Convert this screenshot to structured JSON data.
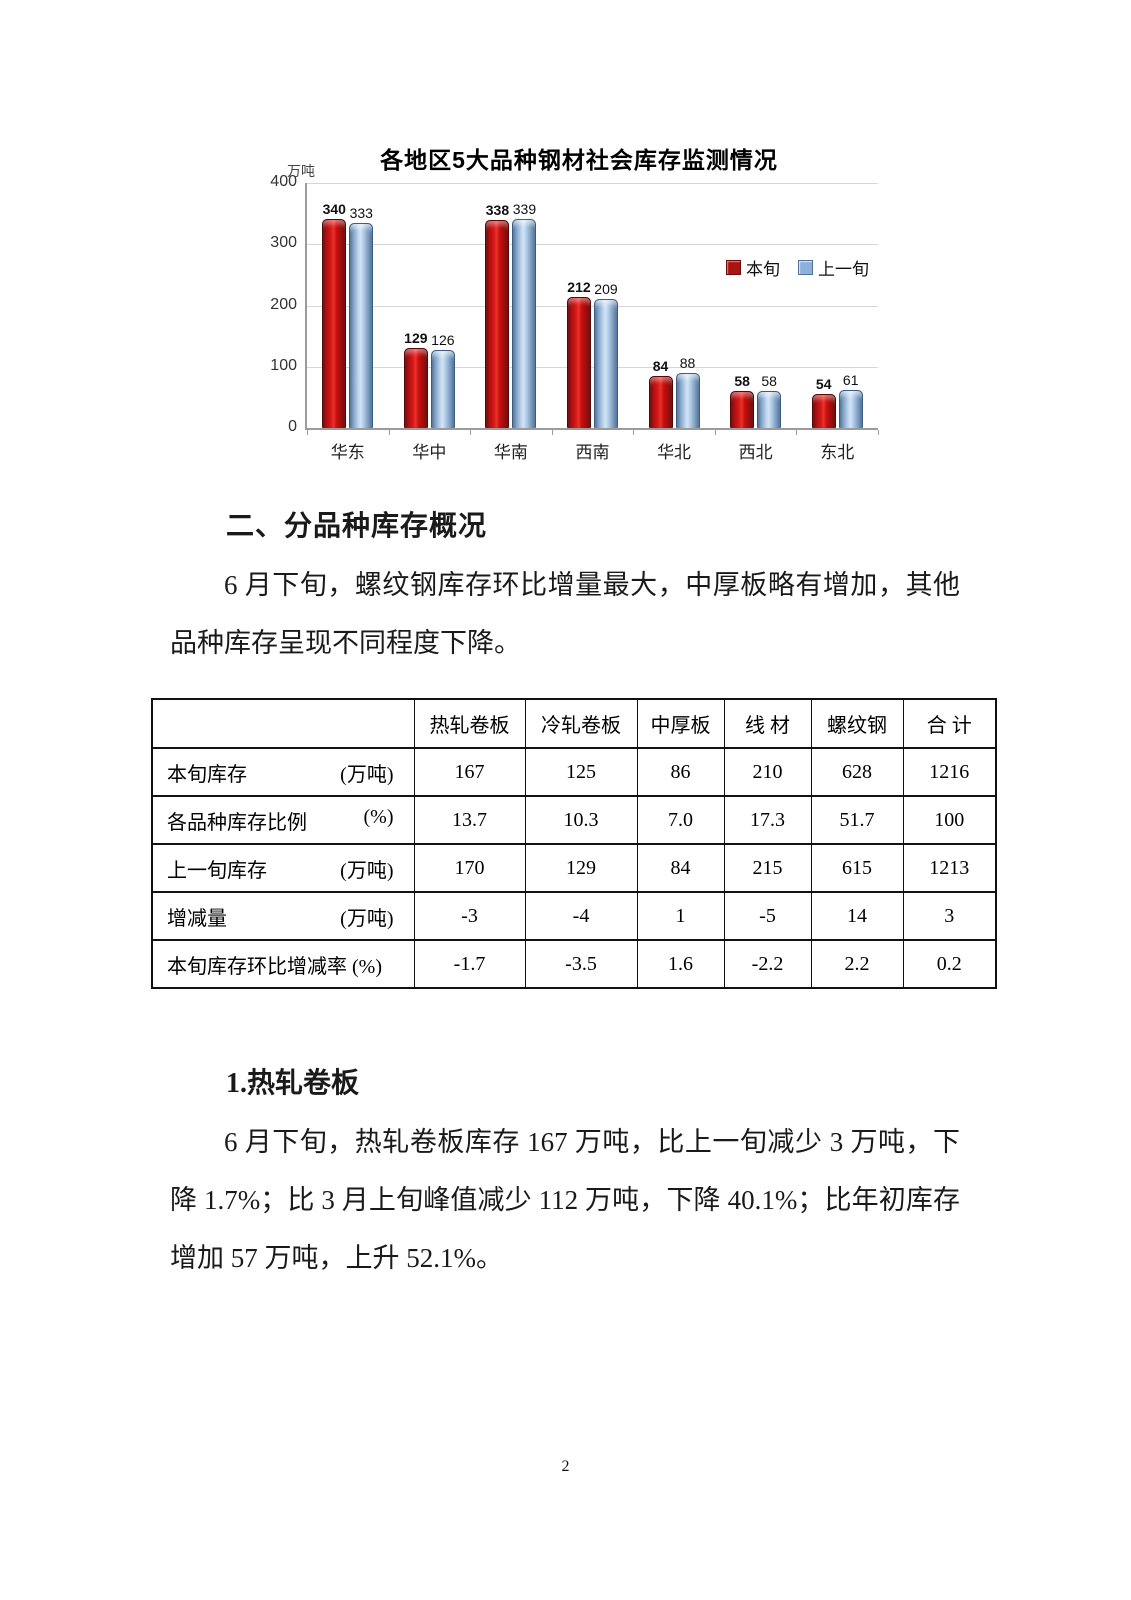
{
  "page": {
    "number": "2"
  },
  "chart_data": {
    "type": "bar",
    "title": "各地区5大品种钢材社会库存监测情况",
    "categories": [
      "华东",
      "华中",
      "华南",
      "西南",
      "华北",
      "西北",
      "东北"
    ],
    "series": [
      {
        "name": "本旬",
        "color": "#c00000",
        "values": [
          340,
          129,
          338,
          212,
          84,
          58,
          54
        ]
      },
      {
        "name": "上一旬",
        "color": "#a9c6e4",
        "values": [
          333,
          126,
          339,
          209,
          88,
          58,
          61
        ]
      }
    ],
    "xlabel": "",
    "ylabel": "万吨",
    "ylim": [
      0,
      400
    ],
    "yticks": [
      0,
      100,
      200,
      300,
      400
    ],
    "grid": true,
    "legend_position": "right-inside",
    "value_labels": true
  },
  "section_overview": {
    "heading": "二、分品种库存概况",
    "paragraph": "6 月下旬，螺纹钢库存环比增量最大，中厚板略有增加，其他品种库存呈现不同程度下降。"
  },
  "table": {
    "columns": [
      "",
      "热轧卷板",
      "冷轧卷板",
      "中厚板",
      "线 材",
      "螺纹钢",
      "合 计"
    ],
    "rows": [
      {
        "label": "本旬库存",
        "unit": "(万吨)",
        "values": [
          "167",
          "125",
          "86",
          "210",
          "628",
          "1216"
        ]
      },
      {
        "label": "各品种库存比例",
        "unit": "(%)",
        "values": [
          "13.7",
          "10.3",
          "7.0",
          "17.3",
          "51.7",
          "100"
        ]
      },
      {
        "label": "上一旬库存",
        "unit": "(万吨)",
        "values": [
          "170",
          "129",
          "84",
          "215",
          "615",
          "1213"
        ]
      },
      {
        "label": "增减量",
        "unit": "(万吨)",
        "values": [
          "-3",
          "-4",
          "1",
          "-5",
          "14",
          "3"
        ]
      },
      {
        "label": "本旬库存环比增减率 (%)",
        "unit": "",
        "values": [
          "-1.7",
          "-3.5",
          "1.6",
          "-2.2",
          "2.2",
          "0.2"
        ]
      }
    ]
  },
  "section_hot_rolled": {
    "heading": "1.热轧卷板",
    "paragraph": "6 月下旬，热轧卷板库存 167 万吨，比上一旬减少 3 万吨，下降 1.7%；比 3 月上旬峰值减少 112 万吨，下降 40.1%；比年初库存增加 57 万吨，上升 52.1%。"
  }
}
